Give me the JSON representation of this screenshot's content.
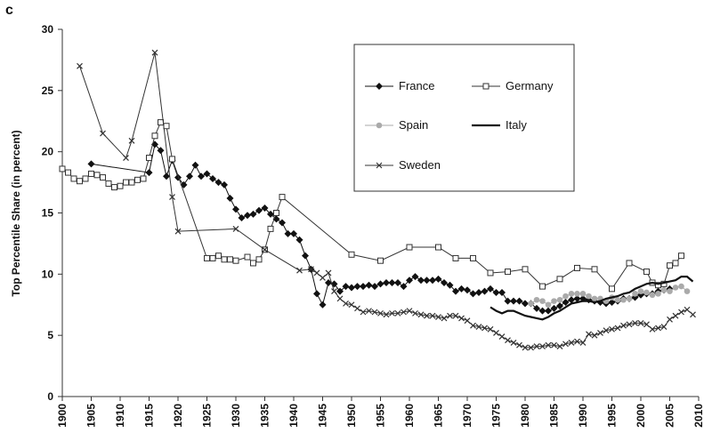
{
  "chart_data": {
    "type": "line",
    "panel_label": "c",
    "y_label": "Top Percentile Share (in percent)",
    "xlim": [
      1900,
      2010
    ],
    "xticks": [
      1900,
      1905,
      1910,
      1915,
      1920,
      1925,
      1930,
      1935,
      1940,
      1945,
      1950,
      1955,
      1960,
      1965,
      1970,
      1975,
      1980,
      1985,
      1990,
      1995,
      2000,
      2005,
      2010
    ],
    "ylim": [
      0,
      30
    ],
    "yticks": [
      0,
      5,
      10,
      15,
      20,
      25,
      30
    ],
    "grid": false,
    "legend": "upper right",
    "series": [
      {
        "name": "France",
        "color": "#111111",
        "marker": "diamond",
        "x": [
          1905,
          1915,
          1916,
          1917,
          1918,
          1919,
          1920,
          1921,
          1922,
          1923,
          1924,
          1925,
          1926,
          1927,
          1928,
          1929,
          1930,
          1931,
          1932,
          1933,
          1934,
          1935,
          1936,
          1937,
          1938,
          1939,
          1940,
          1941,
          1942,
          1943,
          1944,
          1945,
          1946,
          1947,
          1948,
          1949,
          1950,
          1951,
          1952,
          1953,
          1954,
          1955,
          1956,
          1957,
          1958,
          1959,
          1960,
          1961,
          1962,
          1963,
          1964,
          1965,
          1966,
          1967,
          1968,
          1969,
          1970,
          1971,
          1972,
          1973,
          1974,
          1975,
          1976,
          1977,
          1978,
          1979,
          1980,
          1981,
          1982,
          1983,
          1984,
          1985,
          1986,
          1987,
          1988,
          1989,
          1990,
          1991,
          1992,
          1993,
          1994,
          1995,
          1996,
          1997,
          1998,
          1999,
          2000,
          2001,
          2002,
          2003,
          2004,
          2005
        ],
        "values": [
          19.0,
          18.3,
          20.6,
          20.1,
          18.0,
          19.3,
          17.9,
          17.3,
          18.0,
          18.9,
          18.0,
          18.2,
          17.8,
          17.5,
          17.3,
          16.2,
          15.3,
          14.6,
          14.8,
          14.9,
          15.2,
          15.4,
          14.9,
          14.5,
          14.2,
          13.3,
          13.3,
          12.8,
          11.5,
          10.4,
          8.4,
          7.5,
          9.3,
          9.2,
          8.6,
          9.0,
          8.9,
          9.0,
          9.0,
          9.1,
          9.0,
          9.2,
          9.3,
          9.3,
          9.3,
          9.0,
          9.5,
          9.8,
          9.5,
          9.5,
          9.5,
          9.6,
          9.3,
          9.1,
          8.6,
          8.8,
          8.7,
          8.4,
          8.5,
          8.6,
          8.8,
          8.5,
          8.5,
          7.8,
          7.8,
          7.8,
          7.6,
          7.6,
          7.2,
          7.0,
          7.0,
          7.2,
          7.4,
          7.7,
          7.9,
          8.0,
          8.0,
          7.9,
          7.8,
          7.7,
          7.6,
          7.7,
          7.8,
          8.0,
          8.0,
          8.1,
          8.3,
          8.4,
          8.4,
          8.6,
          8.7,
          8.8
        ]
      },
      {
        "name": "Germany",
        "color": "#333333",
        "marker": "square",
        "x": [
          1900,
          1901,
          1902,
          1903,
          1904,
          1905,
          1906,
          1907,
          1908,
          1909,
          1910,
          1911,
          1912,
          1913,
          1914,
          1915,
          1916,
          1917,
          1918,
          1919,
          1925,
          1926,
          1927,
          1928,
          1929,
          1930,
          1932,
          1933,
          1934,
          1935,
          1936,
          1937,
          1938,
          1950,
          1955,
          1960,
          1965,
          1968,
          1971,
          1974,
          1977,
          1980,
          1983,
          1986,
          1989,
          1992,
          1995,
          1998,
          2001,
          2002,
          2003,
          2004,
          2005,
          2006,
          2007
        ],
        "values": [
          18.6,
          18.3,
          17.8,
          17.6,
          17.8,
          18.2,
          18.1,
          17.9,
          17.4,
          17.1,
          17.2,
          17.5,
          17.5,
          17.7,
          17.8,
          19.5,
          21.3,
          22.4,
          22.1,
          19.4,
          11.3,
          11.3,
          11.5,
          11.2,
          11.2,
          11.1,
          11.4,
          10.9,
          11.2,
          12.0,
          13.7,
          15.0,
          16.3,
          11.6,
          11.1,
          12.2,
          12.2,
          11.3,
          11.3,
          10.1,
          10.2,
          10.4,
          9.0,
          9.6,
          10.5,
          10.4,
          8.8,
          10.9,
          10.2,
          9.3,
          9.1,
          9.2,
          10.7,
          10.9,
          11.5
        ]
      },
      {
        "name": "Spain",
        "color": "#aaaaaa",
        "marker": "circle",
        "x": [
          1981,
          1982,
          1983,
          1984,
          1985,
          1986,
          1987,
          1988,
          1989,
          1990,
          1991,
          1992,
          1993,
          1994,
          1995,
          1996,
          1997,
          1998,
          1999,
          2000,
          2001,
          2002,
          2003,
          2004,
          2005,
          2006,
          2007,
          2008
        ],
        "values": [
          7.6,
          7.9,
          7.8,
          7.5,
          7.8,
          7.9,
          8.2,
          8.4,
          8.4,
          8.4,
          8.2,
          8.0,
          8.0,
          7.8,
          8.1,
          7.9,
          7.9,
          8.0,
          8.4,
          8.6,
          8.5,
          8.3,
          8.4,
          8.7,
          8.6,
          8.9,
          9.0,
          8.6
        ]
      },
      {
        "name": "Italy",
        "color": "#111111",
        "marker": "none",
        "x": [
          1974,
          1975,
          1976,
          1977,
          1978,
          1979,
          1980,
          1981,
          1982,
          1983,
          1984,
          1985,
          1986,
          1987,
          1988,
          1989,
          1990,
          1991,
          1992,
          1993,
          1994,
          1995,
          1996,
          1997,
          1998,
          1999,
          2000,
          2001,
          2002,
          2003,
          2004,
          2005,
          2006,
          2007,
          2008,
          2009
        ],
        "values": [
          7.3,
          7.0,
          6.8,
          7.0,
          7.0,
          6.8,
          6.6,
          6.5,
          6.4,
          6.3,
          6.5,
          6.8,
          7.0,
          7.3,
          7.6,
          7.7,
          7.8,
          7.8,
          7.7,
          7.8,
          8.0,
          8.1,
          8.2,
          8.4,
          8.5,
          8.8,
          9.0,
          9.2,
          9.3,
          9.2,
          9.3,
          9.4,
          9.5,
          9.8,
          9.8,
          9.4
        ]
      },
      {
        "name": "Sweden",
        "color": "#333333",
        "marker": "x",
        "x": [
          1903,
          1907,
          1911,
          1912,
          1916,
          1919,
          1920,
          1930,
          1935,
          1941,
          1943,
          1944,
          1945,
          1946,
          1947,
          1948,
          1949,
          1950,
          1951,
          1952,
          1953,
          1954,
          1955,
          1956,
          1957,
          1958,
          1959,
          1960,
          1961,
          1962,
          1963,
          1964,
          1965,
          1966,
          1967,
          1968,
          1969,
          1970,
          1971,
          1972,
          1973,
          1974,
          1975,
          1976,
          1977,
          1978,
          1979,
          1980,
          1981,
          1982,
          1983,
          1984,
          1985,
          1986,
          1987,
          1988,
          1989,
          1990,
          1991,
          1992,
          1993,
          1994,
          1995,
          1996,
          1997,
          1998,
          1999,
          2000,
          2001,
          2002,
          2003,
          2004,
          2005,
          2006,
          2007,
          2008,
          2009
        ],
        "values": [
          27.0,
          21.5,
          19.5,
          20.9,
          28.1,
          16.3,
          13.5,
          13.7,
          12.0,
          10.3,
          10.4,
          10.1,
          9.7,
          10.1,
          8.6,
          8.0,
          7.6,
          7.5,
          7.2,
          6.9,
          7.0,
          6.9,
          6.8,
          6.7,
          6.8,
          6.8,
          6.9,
          7.0,
          6.8,
          6.7,
          6.6,
          6.6,
          6.5,
          6.4,
          6.6,
          6.6,
          6.4,
          6.2,
          5.8,
          5.7,
          5.6,
          5.5,
          5.2,
          4.9,
          4.6,
          4.4,
          4.2,
          4.0,
          4.0,
          4.1,
          4.1,
          4.2,
          4.2,
          4.1,
          4.3,
          4.4,
          4.5,
          4.4,
          5.1,
          5.0,
          5.2,
          5.4,
          5.5,
          5.6,
          5.8,
          5.9,
          6.0,
          6.0,
          5.9,
          5.5,
          5.6,
          5.7,
          6.3,
          6.6,
          6.9,
          7.1,
          6.7
        ]
      }
    ]
  }
}
